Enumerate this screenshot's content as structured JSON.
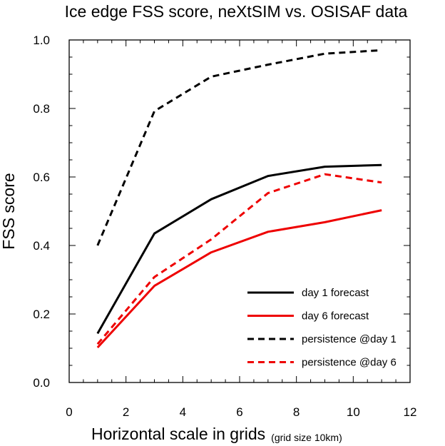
{
  "chart_data": {
    "type": "line",
    "title": "Ice edge FSS score, neXtSIM vs. OSISAF data",
    "xlabel": "Horizontal scale in grids",
    "xlabel_note": "(grid size 10km)",
    "ylabel": "FSS score",
    "xlim": [
      0,
      12
    ],
    "ylim": [
      0,
      1
    ],
    "x_ticks": [
      0,
      2,
      4,
      6,
      8,
      10,
      12
    ],
    "x_tick_labels": [
      "0",
      "2",
      "4",
      "6",
      "8",
      "10",
      "12"
    ],
    "y_ticks": [
      0,
      0.2,
      0.4,
      0.6,
      0.8,
      1.0
    ],
    "y_tick_labels": [
      "0.0",
      "0.2",
      "0.4",
      "0.6",
      "0.8",
      "1.0"
    ],
    "grid": false,
    "legend_position": "bottom-right",
    "x": [
      1,
      3,
      5,
      7,
      9,
      11
    ],
    "series": [
      {
        "name": "day 1 forecast",
        "values": [
          0.143,
          0.435,
          0.535,
          0.603,
          0.63,
          0.635
        ],
        "color": "#000000",
        "dash": "solid"
      },
      {
        "name": "day 6 forecast",
        "values": [
          0.102,
          0.282,
          0.38,
          0.44,
          0.468,
          0.503
        ],
        "color": "#ee0000",
        "dash": "solid"
      },
      {
        "name": "persistence @day 1",
        "values": [
          0.4,
          0.792,
          0.893,
          0.928,
          0.96,
          0.97
        ],
        "color": "#000000",
        "dash": "dashed"
      },
      {
        "name": "persistence @day 6",
        "values": [
          0.112,
          0.308,
          0.418,
          0.553,
          0.608,
          0.584
        ],
        "color": "#ee0000",
        "dash": "dashed"
      }
    ]
  }
}
